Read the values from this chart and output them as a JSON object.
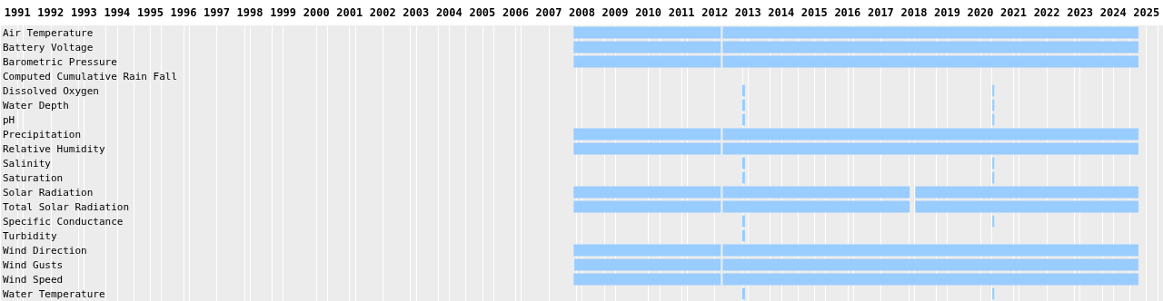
{
  "chart_data": {
    "type": "bar",
    "orientation": "horizontal",
    "grid": "x",
    "legend": false,
    "categories": [
      "Air Temperature",
      "Battery Voltage",
      "Barometric Pressure",
      "Computed Cumulative Rain Fall",
      "Dissolved Oxygen",
      "Water Depth",
      "pH",
      "Precipitation",
      "Relative Humidity",
      "Salinity",
      "Saturation",
      "Solar Radiation",
      "Total Solar Radiation",
      "Specific Conductance",
      "Turbidity",
      "Wind Direction",
      "Wind Gusts",
      "Wind Speed",
      "Water Temperature"
    ],
    "xlim": [
      1991,
      2026
    ],
    "xticks": [
      {
        "value": 1991.5,
        "label": "1991"
      },
      {
        "value": 1992.5,
        "label": "1992"
      },
      {
        "value": 1993.5,
        "label": "1993"
      },
      {
        "value": 1994.5,
        "label": "1994"
      },
      {
        "value": 1995.5,
        "label": "1995"
      },
      {
        "value": 1996.5,
        "label": "1996"
      },
      {
        "value": 1997.5,
        "label": "1997"
      },
      {
        "value": 1998.5,
        "label": "1998"
      },
      {
        "value": 1999.5,
        "label": "1999"
      },
      {
        "value": 2000.5,
        "label": "2000"
      },
      {
        "value": 2001.5,
        "label": "2001"
      },
      {
        "value": 2002.5,
        "label": "2002"
      },
      {
        "value": 2003.5,
        "label": "2003"
      },
      {
        "value": 2004.5,
        "label": "2004"
      },
      {
        "value": 2005.5,
        "label": "2005"
      },
      {
        "value": 2006.5,
        "label": "2006"
      },
      {
        "value": 2007.5,
        "label": "2007"
      },
      {
        "value": 2008.5,
        "label": "2008"
      },
      {
        "value": 2009.5,
        "label": "2009"
      },
      {
        "value": 2010.5,
        "label": "2010"
      },
      {
        "value": 2011.5,
        "label": "2011"
      },
      {
        "value": 2012.5,
        "label": "2012"
      },
      {
        "value": 2013.5,
        "label": "2013"
      },
      {
        "value": 2014.5,
        "label": "2014"
      },
      {
        "value": 2015.5,
        "label": "2015"
      },
      {
        "value": 2016.5,
        "label": "2016"
      },
      {
        "value": 2017.5,
        "label": "2017"
      },
      {
        "value": 2018.5,
        "label": "2018"
      },
      {
        "value": 2019.5,
        "label": "2019"
      },
      {
        "value": 2020.5,
        "label": "2020"
      },
      {
        "value": 2021.5,
        "label": "2021"
      },
      {
        "value": 2022.5,
        "label": "2022"
      },
      {
        "value": 2023.5,
        "label": "2023"
      },
      {
        "value": 2024.5,
        "label": "2024"
      },
      {
        "value": 2025.5,
        "label": "2025"
      }
    ],
    "series": [
      {
        "color": "#99ccff",
        "base": [
          2008.25,
          2008.25,
          2008.25,
          null,
          2013.33,
          2013.33,
          2013.33,
          2008.25,
          2008.25,
          2013.33,
          2013.33,
          2008.25,
          2008.25,
          2013.33,
          2013.33,
          2008.25,
          2008.27,
          2008.25,
          2013.33
        ],
        "values": [
          4.43,
          4.43,
          4.43,
          null,
          0.08,
          0.08,
          0.08,
          4.43,
          4.43,
          0.08,
          0.08,
          4.43,
          4.43,
          0.08,
          0.08,
          4.43,
          4.41,
          4.43,
          0.08
        ]
      },
      {
        "color": "#99ccff",
        "base": [
          2012.74,
          2012.74,
          2012.74,
          null,
          2020.86,
          2020.86,
          2020.86,
          2012.74,
          2012.74,
          2020.86,
          2020.86,
          2012.74,
          2012.74,
          2020.86,
          null,
          2012.74,
          2012.74,
          2012.74,
          2020.86
        ],
        "values": [
          12.52,
          12.52,
          12.52,
          null,
          0.06,
          0.06,
          0.06,
          12.52,
          12.52,
          0.06,
          0.06,
          5.63,
          5.63,
          0.06,
          null,
          12.52,
          12.52,
          12.52,
          0.06
        ]
      },
      {
        "color": "#99ccff",
        "base": [
          null,
          null,
          null,
          null,
          null,
          null,
          null,
          null,
          null,
          null,
          null,
          2018.54,
          2018.54,
          null,
          null,
          null,
          null,
          null,
          null
        ],
        "values": [
          null,
          null,
          null,
          null,
          null,
          null,
          null,
          null,
          null,
          null,
          null,
          6.72,
          6.72,
          null,
          null,
          null,
          null,
          null,
          null
        ]
      }
    ]
  }
}
